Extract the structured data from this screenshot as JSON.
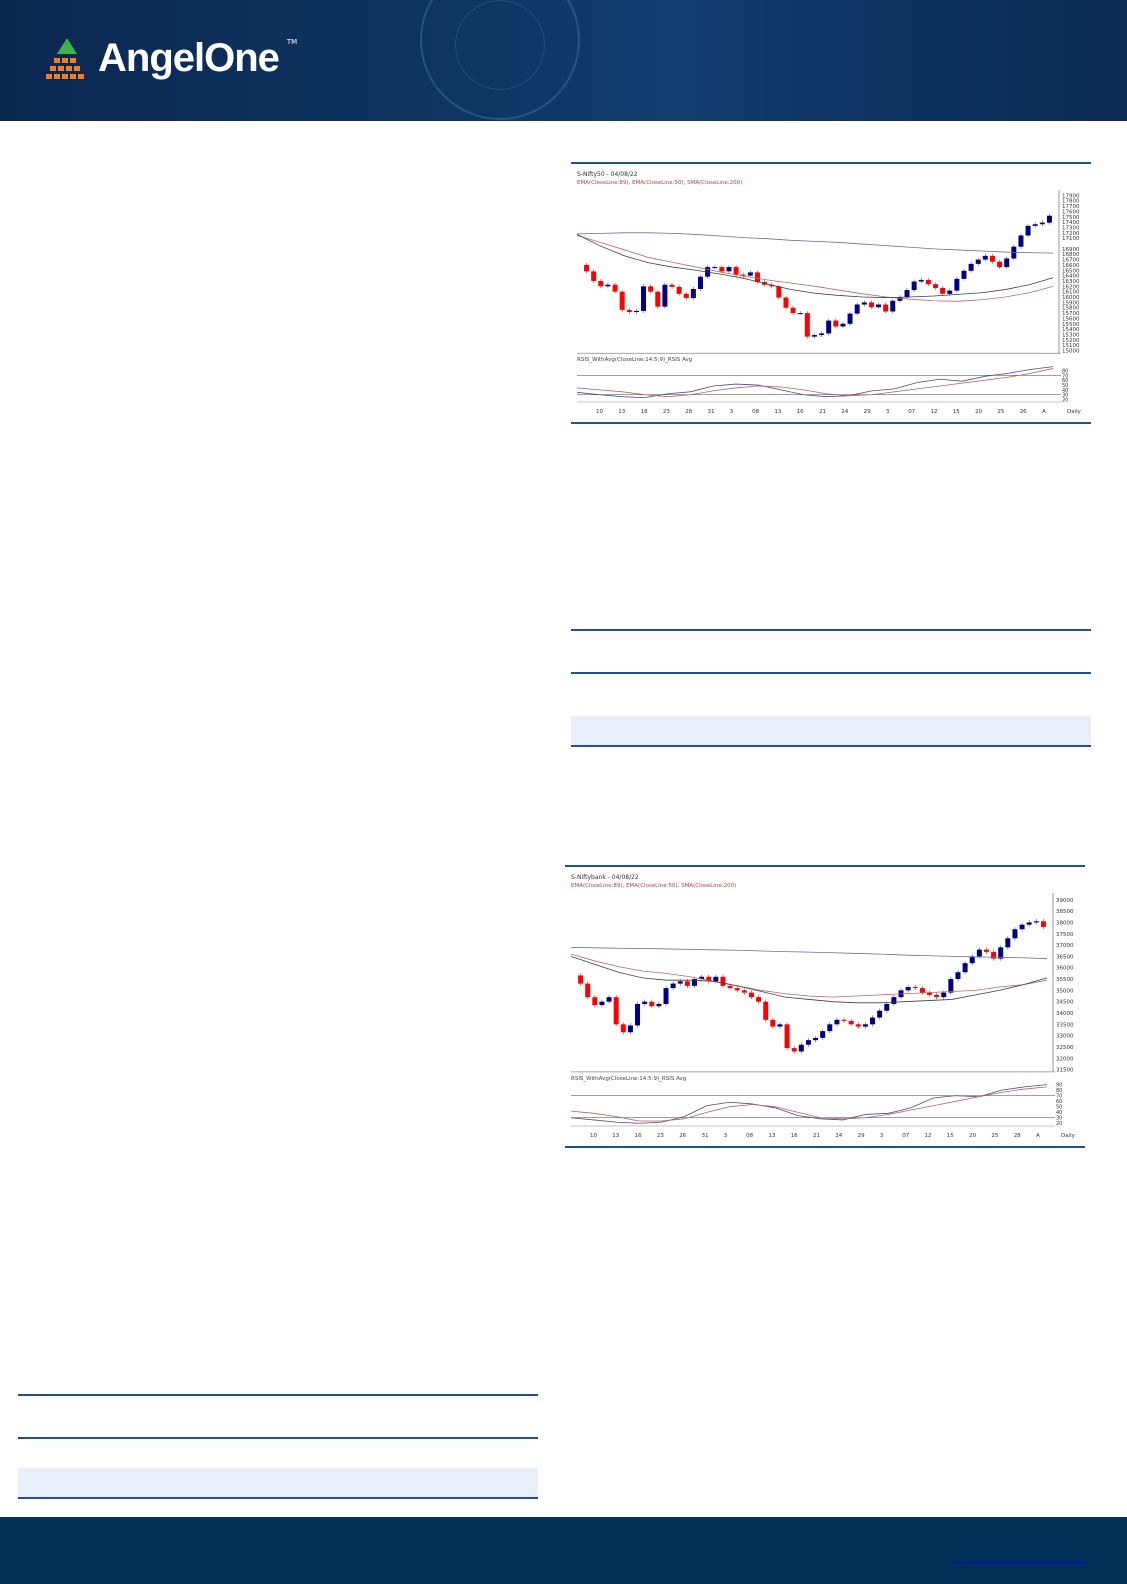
{
  "header": {
    "brand": "AngelOne",
    "trademark": "TM"
  },
  "colors": {
    "header_bg": "#0e3766",
    "footer_bg": "#003057",
    "rule": "#1f4e9a",
    "bull": "#000080",
    "bear": "#ff0000",
    "ema89": "#c86464",
    "ema50": "#404040",
    "sma200": "#6a6ab4"
  },
  "chart_data": [
    {
      "type": "candlestick",
      "title": "S-Nifty50 - 04/08/22",
      "indicator_legend": "EMA(CloseLine:89), EMA(CloseLine:50), SMA(CloseLine:200)",
      "rsi_legend": "RSIS_WithAvg(CloseLine:14:5:9)_RSIS Avg",
      "period": "Daily",
      "x_ticks": [
        "10",
        "13",
        "18",
        "23",
        "28",
        "31",
        "3",
        "08",
        "13",
        "16",
        "21",
        "24",
        "29",
        "3",
        "07",
        "12",
        "15",
        "20",
        "25",
        "26",
        "A"
      ],
      "y_ticks": [
        17900,
        17800,
        17700,
        17600,
        17500,
        17400,
        17300,
        17200,
        17100,
        16900,
        16800,
        16700,
        16600,
        16500,
        16400,
        16300,
        16200,
        16100,
        16000,
        15900,
        15800,
        15700,
        15600,
        15500,
        15400,
        15300,
        15200,
        15100,
        15000
      ],
      "ylim": [
        14950,
        18000
      ],
      "closes": [
        16480,
        16300,
        16200,
        16230,
        16100,
        15760,
        15720,
        15740,
        16200,
        16100,
        15820,
        16230,
        16190,
        16060,
        15980,
        16150,
        16380,
        16560,
        16560,
        16480,
        16560,
        16420,
        16400,
        16460,
        16280,
        16230,
        16200,
        15990,
        15800,
        15700,
        15700,
        15260,
        15290,
        15320,
        15560,
        15450,
        15500,
        15690,
        15860,
        15900,
        15810,
        15860,
        15730,
        15930,
        16000,
        16130,
        16290,
        16320,
        16240,
        16170,
        16060,
        16120,
        16340,
        16490,
        16620,
        16700,
        16770,
        16660,
        16560,
        16720,
        16940,
        17150,
        17330,
        17360,
        17390,
        17520
      ],
      "ema89": [
        17150,
        17020,
        16880,
        16740,
        16650,
        16560,
        16470,
        16390,
        16320,
        16260,
        16200,
        16130,
        16060,
        16000,
        15960,
        15930,
        15920,
        15950,
        16000,
        16080,
        16200
      ],
      "ema50": [
        17170,
        16950,
        16770,
        16640,
        16560,
        16500,
        16430,
        16350,
        16240,
        16140,
        16070,
        16030,
        16000,
        15990,
        16000,
        16020,
        16050,
        16080,
        16140,
        16230,
        16360
      ],
      "sma200": [
        17180,
        17190,
        17200,
        17200,
        17190,
        17170,
        17140,
        17110,
        17090,
        17060,
        17040,
        17020,
        16990,
        16960,
        16930,
        16900,
        16880,
        16860,
        16840,
        16830,
        16820
      ],
      "rsi_ticks": [
        80,
        70,
        60,
        50,
        40,
        30,
        20
      ],
      "rsi": [
        35,
        30,
        26,
        24,
        32,
        36,
        48,
        52,
        50,
        40,
        30,
        26,
        28,
        38,
        42,
        55,
        62,
        58,
        68,
        74,
        82,
        88
      ],
      "rsi_avg": [
        44,
        40,
        36,
        30,
        26,
        30,
        38,
        44,
        48,
        46,
        40,
        32,
        28,
        30,
        36,
        42,
        48,
        54,
        60,
        66,
        74,
        84
      ]
    },
    {
      "type": "candlestick",
      "title": "S-Niftybank - 04/08/22",
      "indicator_legend": "EMA(CloseLine:89), EMA(CloseLine:50), SMA(CloseLine:200)",
      "rsi_legend": "RSIS_WithAvg(CloseLine:14:5:9)_RSIS Avg",
      "period": "Daily",
      "x_ticks": [
        "10",
        "13",
        "16",
        "23",
        "26",
        "31",
        "3",
        "08",
        "13",
        "16",
        "21",
        "24",
        "29",
        "3",
        "07",
        "12",
        "15",
        "20",
        "25",
        "28",
        "A"
      ],
      "y_ticks": [
        39000,
        38500,
        38000,
        37500,
        37000,
        36500,
        36000,
        35500,
        35000,
        34500,
        34000,
        33500,
        33000,
        32500,
        32000,
        31500
      ],
      "ylim": [
        31400,
        39300
      ],
      "closes": [
        35300,
        34700,
        34350,
        34500,
        34700,
        33500,
        33150,
        33450,
        34400,
        34500,
        34300,
        34400,
        35100,
        35300,
        35400,
        35200,
        35500,
        35600,
        35400,
        35600,
        35200,
        35100,
        35000,
        34900,
        34700,
        34500,
        33700,
        33400,
        33500,
        32450,
        32300,
        32600,
        32800,
        32900,
        33200,
        33500,
        33700,
        33650,
        33500,
        33400,
        33500,
        33800,
        34100,
        34400,
        34700,
        35000,
        35150,
        35100,
        34900,
        34800,
        34700,
        34900,
        35500,
        35800,
        36200,
        36500,
        36800,
        36700,
        36400,
        36900,
        37300,
        37700,
        37900,
        38000,
        38050,
        37800
      ],
      "ema89": [
        36600,
        36300,
        36050,
        35850,
        35750,
        35600,
        35400,
        35200,
        35000,
        34850,
        34750,
        34700,
        34750,
        34800,
        34850,
        34900,
        34950,
        35000,
        35150,
        35250,
        35450
      ],
      "ema50": [
        36500,
        36150,
        35800,
        35550,
        35450,
        35450,
        35400,
        35200,
        34950,
        34700,
        34600,
        34500,
        34450,
        34450,
        34500,
        34550,
        34600,
        34800,
        35000,
        35250,
        35550
      ],
      "sma200": [
        36900,
        36880,
        36860,
        36850,
        36830,
        36810,
        36790,
        36770,
        36740,
        36710,
        36690,
        36660,
        36630,
        36600,
        36560,
        36530,
        36500,
        36480,
        36460,
        36440,
        36400
      ],
      "rsi_ticks": [
        90,
        80,
        70,
        60,
        50,
        40,
        30,
        20
      ],
      "rsi": [
        30,
        26,
        22,
        20,
        22,
        32,
        52,
        58,
        55,
        48,
        34,
        28,
        26,
        36,
        38,
        48,
        66,
        70,
        68,
        80,
        86,
        90
      ],
      "rsi_avg": [
        42,
        38,
        32,
        24,
        24,
        28,
        40,
        50,
        54,
        50,
        40,
        30,
        28,
        30,
        36,
        44,
        52,
        60,
        68,
        76,
        82,
        86
      ]
    }
  ]
}
